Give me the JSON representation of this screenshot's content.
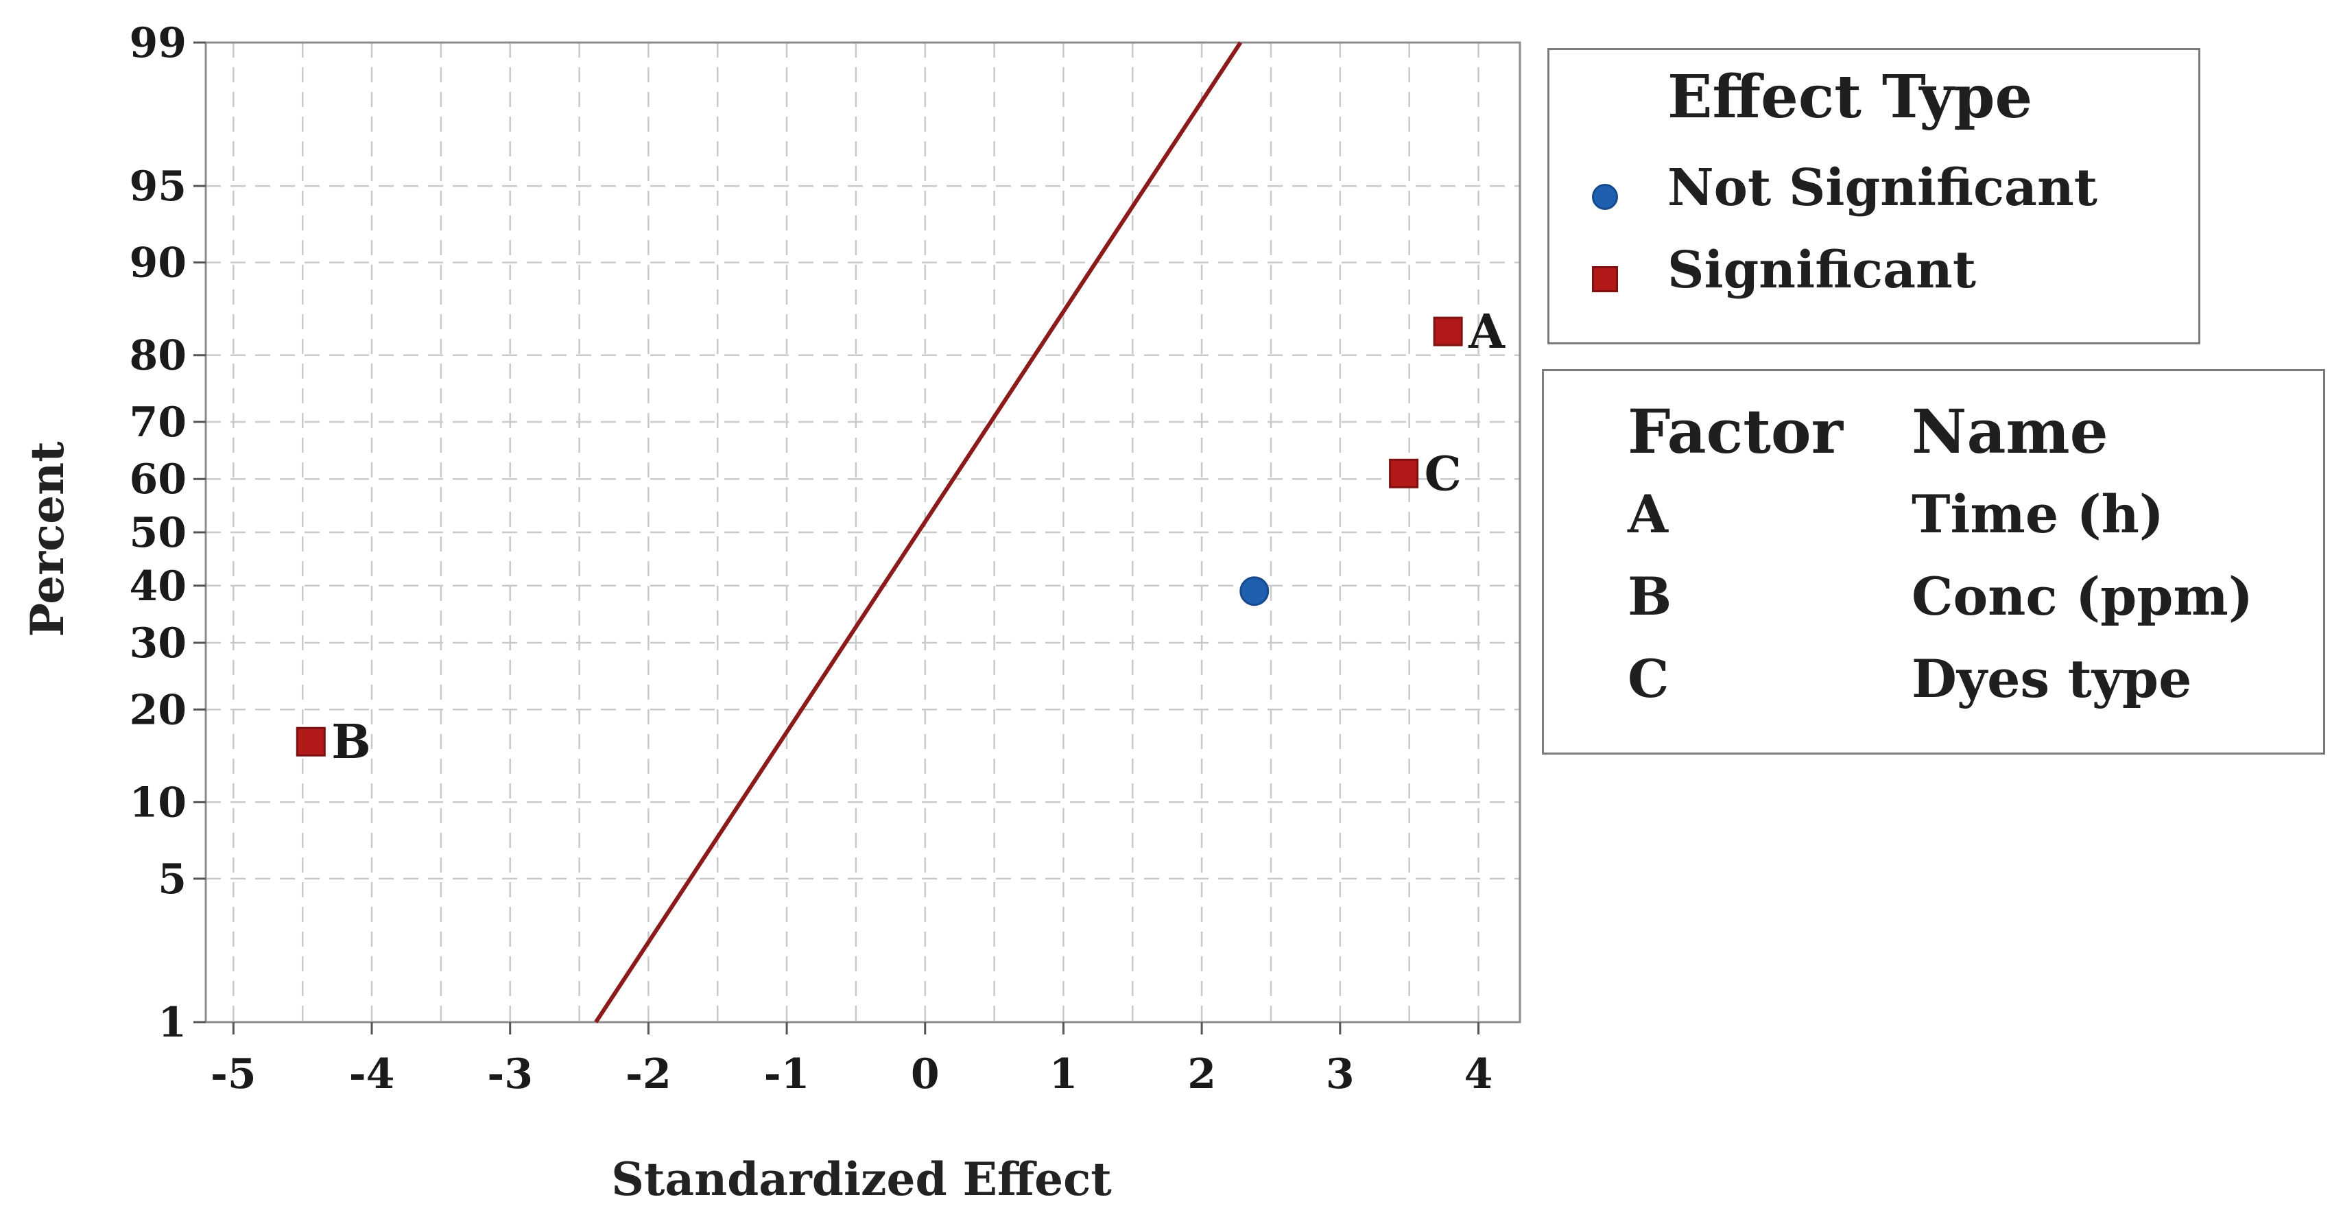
{
  "chart_data": {
    "type": "scatter",
    "title": "",
    "xlabel": "Standardized Effect",
    "ylabel": "Percent",
    "xlim": [
      -5.2,
      4.3
    ],
    "ylim": [
      1,
      99
    ],
    "y_scale": "normal-probability",
    "grid": true,
    "x_ticks": [
      "-5",
      "-4",
      "-3",
      "-2",
      "-1",
      "0",
      "1",
      "2",
      "3",
      "4"
    ],
    "y_ticks": [
      "1",
      "5",
      "10",
      "20",
      "30",
      "40",
      "50",
      "60",
      "70",
      "80",
      "90",
      "95",
      "99"
    ],
    "reference_line": {
      "points": [
        [
          -2.38,
          1
        ],
        [
          2.28,
          99
        ]
      ],
      "color": "#8b1a1a"
    },
    "series": [
      {
        "name": "Not Significant",
        "marker": "circle",
        "color": "#1f5fb0",
        "points": [
          {
            "x": 2.38,
            "y": 39,
            "label": ""
          }
        ]
      },
      {
        "name": "Significant",
        "marker": "square",
        "color": "#b21a1a",
        "points": [
          {
            "x": 3.78,
            "y": 83,
            "label": "A"
          },
          {
            "x": 3.46,
            "y": 61,
            "label": "C"
          },
          {
            "x": -4.44,
            "y": 16,
            "label": "B"
          }
        ]
      }
    ],
    "legend": {
      "title": "Effect Type",
      "placement": "right",
      "items": [
        {
          "label": "Not Significant",
          "marker": "circle",
          "color": "#1f5fb0"
        },
        {
          "label": "Significant",
          "marker": "square",
          "color": "#b21a1a"
        }
      ]
    },
    "factor_table": {
      "headers": [
        "Factor",
        "Name"
      ],
      "rows": [
        {
          "factor": "A",
          "name": "Time (h)"
        },
        {
          "factor": "B",
          "name": "Conc (ppm)"
        },
        {
          "factor": "C",
          "name": "Dyes type"
        }
      ]
    }
  }
}
